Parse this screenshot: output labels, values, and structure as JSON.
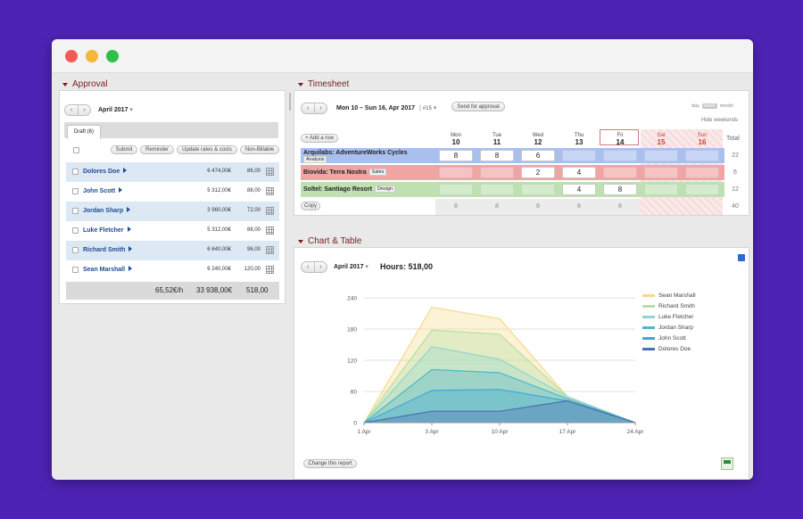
{
  "approval": {
    "title": "Approval",
    "month": "April 2017",
    "tab": "Draft (6)",
    "actions": [
      "Submit",
      "Reminder",
      "Update rates & costs",
      "Non-Billable"
    ],
    "rows": [
      {
        "name": "Dolores Doe",
        "amount": "6 474,00€",
        "hours": "86,00"
      },
      {
        "name": "John Scott",
        "amount": "5 312,00€",
        "hours": "88,00"
      },
      {
        "name": "Jordan Sharp",
        "amount": "3 960,00€",
        "hours": "72,00"
      },
      {
        "name": "Luke Fletcher",
        "amount": "5 312,00€",
        "hours": "88,00"
      },
      {
        "name": "Richard Smith",
        "amount": "6 640,00€",
        "hours": "96,00"
      },
      {
        "name": "Sean Marshall",
        "amount": "6 240,00€",
        "hours": "120,00"
      }
    ],
    "footer": {
      "rate": "65,52€/h",
      "amount": "33 938,00€",
      "hours": "518,00"
    }
  },
  "timesheet": {
    "title": "Timesheet",
    "range": "Mon 10 – Sun 16, Apr 2017",
    "week": "#15",
    "send_label": "Send for approval",
    "views": [
      "day",
      "week",
      "month"
    ],
    "hide_weekends": "Hide weekends",
    "add_row": "+ Add a row",
    "copy": "Copy",
    "total_label": "Total",
    "days": [
      {
        "name": "Mon",
        "num": "10"
      },
      {
        "name": "Tue",
        "num": "11"
      },
      {
        "name": "Wed",
        "num": "12"
      },
      {
        "name": "Thu",
        "num": "13"
      },
      {
        "name": "Fri",
        "num": "14"
      },
      {
        "name": "Sat",
        "num": "15"
      },
      {
        "name": "Sun",
        "num": "16"
      }
    ],
    "rows": [
      {
        "client": "Arquilabs: AdventureWorks Cycles",
        "task": "Analysis",
        "cells": [
          "8",
          "8",
          "6",
          "",
          "",
          "",
          ""
        ],
        "total": "22",
        "color": "#a9c0ef"
      },
      {
        "client": "Biovida: Terra Nostra",
        "task": "Sales",
        "cells": [
          "",
          "",
          "2",
          "4",
          "",
          "",
          ""
        ],
        "total": "6",
        "color": "#f1a4a4"
      },
      {
        "client": "Soltel: Santiago Resort",
        "task": "Design",
        "cells": [
          "",
          "",
          "",
          "4",
          "8",
          "",
          ""
        ],
        "total": "12",
        "color": "#bfe0b2"
      }
    ],
    "day_totals": [
      "8",
      "8",
      "8",
      "8",
      "8",
      "",
      ""
    ],
    "grand_total": "40"
  },
  "chart_section": {
    "title": "Chart & Table",
    "month": "April 2017",
    "hours_label": "Hours: 518,00",
    "change_report": "Change this report"
  },
  "chart_data": {
    "type": "area",
    "x": [
      "1 Apr",
      "3 Apr",
      "10 Apr",
      "17 Apr",
      "24 Apr"
    ],
    "ylim": [
      0,
      240
    ],
    "yticks": [
      "0",
      "60",
      "120",
      "180",
      "240"
    ],
    "legend_position": "right",
    "series": [
      {
        "name": "Dolores Doe",
        "values": [
          0,
          22,
          22,
          42,
          0
        ],
        "color": "#4b6fb3"
      },
      {
        "name": "John Scott",
        "values": [
          0,
          62,
          64,
          42,
          0
        ],
        "color": "#3fa7d8"
      },
      {
        "name": "Jordan Sharp",
        "values": [
          0,
          102,
          96,
          46,
          0
        ],
        "color": "#4fb7c8"
      },
      {
        "name": "Luke Fletcher",
        "values": [
          0,
          146,
          122,
          50,
          0
        ],
        "color": "#8fd6cf"
      },
      {
        "name": "Richard Smith",
        "values": [
          0,
          178,
          170,
          50,
          0
        ],
        "color": "#b5e0a2"
      },
      {
        "name": "Sean Marshall",
        "values": [
          0,
          222,
          200,
          50,
          0
        ],
        "color": "#f5d98a"
      }
    ]
  }
}
